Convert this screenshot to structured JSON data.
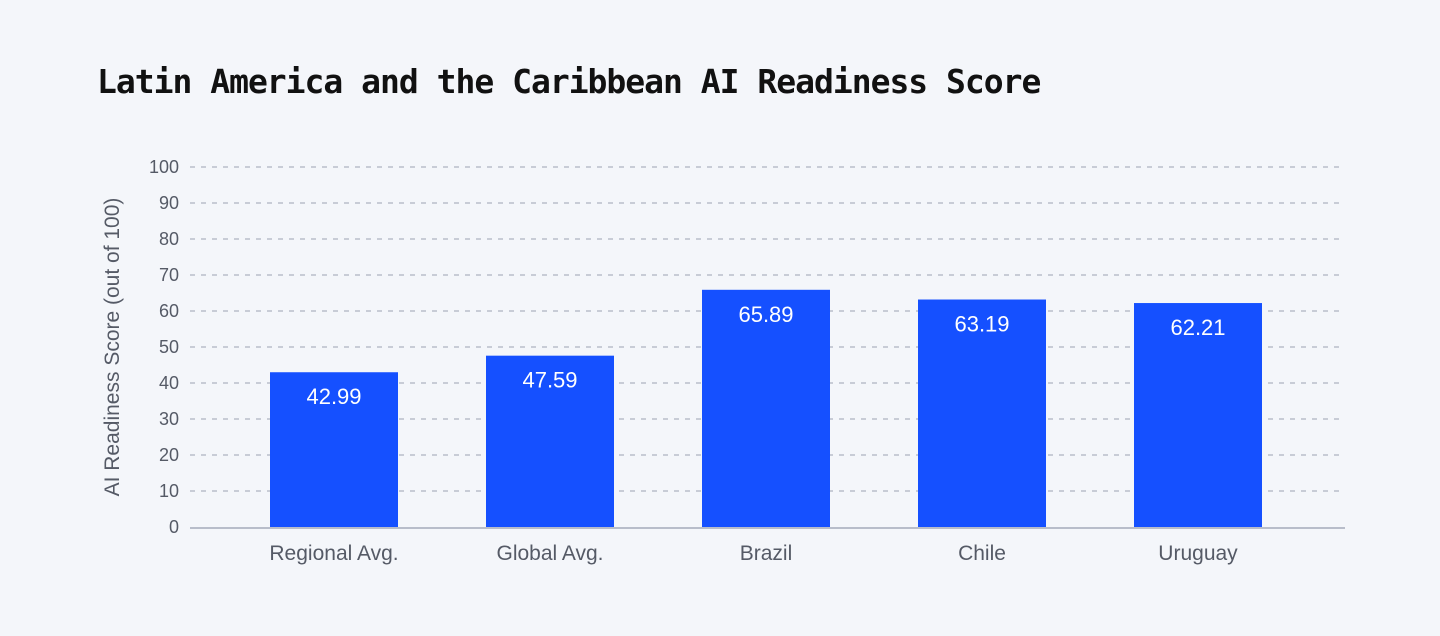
{
  "chart_data": {
    "type": "bar",
    "title": "Latin America and the Caribbean AI Readiness Score",
    "xlabel": "",
    "ylabel": "AI Readiness Score (out of 100)",
    "categories": [
      "Regional Avg.",
      "Global Avg.",
      "Brazil",
      "Chile",
      "Uruguay"
    ],
    "values": [
      42.99,
      47.59,
      65.89,
      63.19,
      62.21
    ],
    "data_labels": [
      "42.99",
      "47.59",
      "65.89",
      "63.19",
      "62.21"
    ],
    "ylim": [
      0,
      100
    ],
    "yticks": [
      "0",
      "10",
      "20",
      "30",
      "40",
      "50",
      "60",
      "70",
      "80",
      "90",
      "100"
    ],
    "grid": true,
    "colors": {
      "bar": "#1550ff",
      "grid": "#c8ccd6",
      "axis": "#b8bdca",
      "text": "#555a66",
      "background": "#f4f6fa"
    }
  }
}
